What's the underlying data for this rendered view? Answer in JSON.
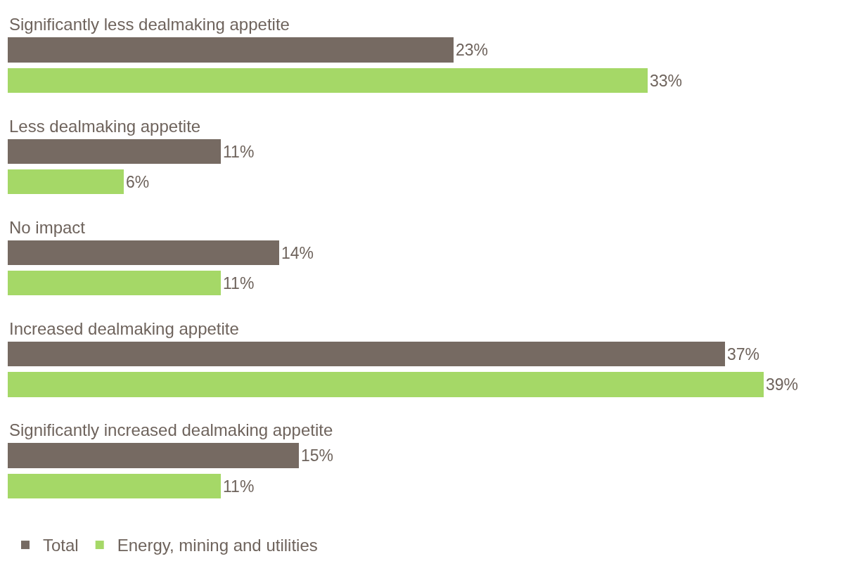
{
  "chart_data": {
    "type": "bar",
    "orientation": "horizontal",
    "categories": [
      "Significantly less dealmaking appetite",
      "Less dealmaking appetite",
      "No impact",
      "Increased dealmaking appetite",
      "Significantly increased dealmaking appetite"
    ],
    "series": [
      {
        "name": "Total",
        "color": "#766a62",
        "values": [
          23,
          11,
          14,
          37,
          15
        ],
        "value_labels": [
          "23%",
          "11%",
          "14%",
          "37%",
          "15%"
        ]
      },
      {
        "name": "Energy, mining and utilities",
        "color": "#a5d867",
        "values": [
          33,
          6,
          11,
          39,
          11
        ],
        "value_labels": [
          "33%",
          "6%",
          "11%",
          "39%",
          "11%"
        ]
      }
    ],
    "legend": "bottom left"
  }
}
